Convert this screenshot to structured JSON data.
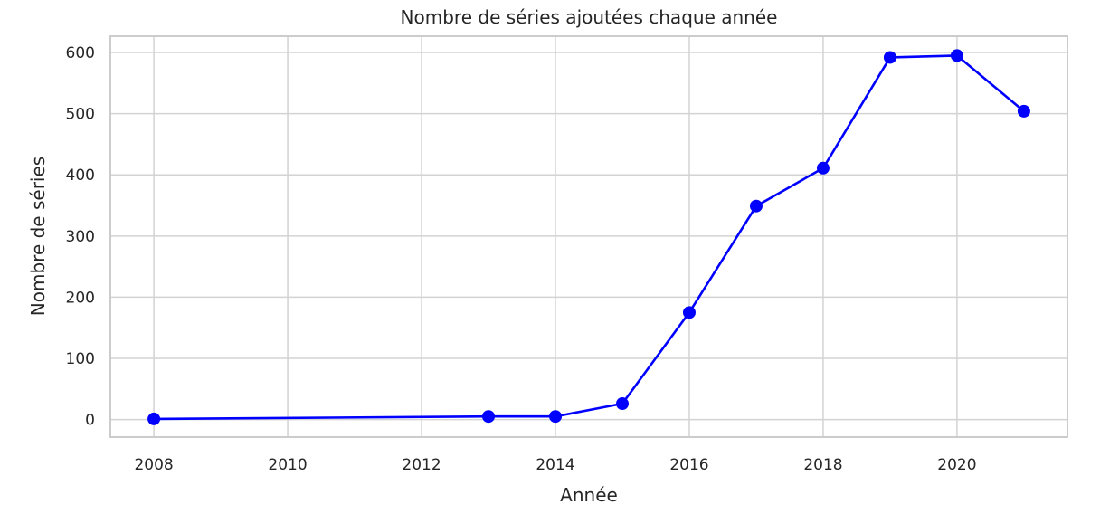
{
  "chart_data": {
    "type": "line",
    "title": "Nombre de séries ajoutées chaque année",
    "xlabel": "Année",
    "ylabel": "Nombre de séries",
    "x": [
      2008,
      2013,
      2014,
      2015,
      2016,
      2017,
      2018,
      2019,
      2020,
      2021
    ],
    "series": [
      {
        "values": [
          1,
          5,
          5,
          26,
          175,
          349,
          411,
          592,
          595,
          504
        ],
        "color": "#0000ff",
        "marker": "circle"
      }
    ],
    "xticks": [
      2008,
      2010,
      2012,
      2014,
      2016,
      2018,
      2020
    ],
    "yticks": [
      0,
      100,
      200,
      300,
      400,
      500,
      600
    ],
    "xlim": [
      2007.35,
      2021.65
    ],
    "ylim": [
      -28.7,
      626.7
    ],
    "grid": true,
    "legend": "none"
  }
}
